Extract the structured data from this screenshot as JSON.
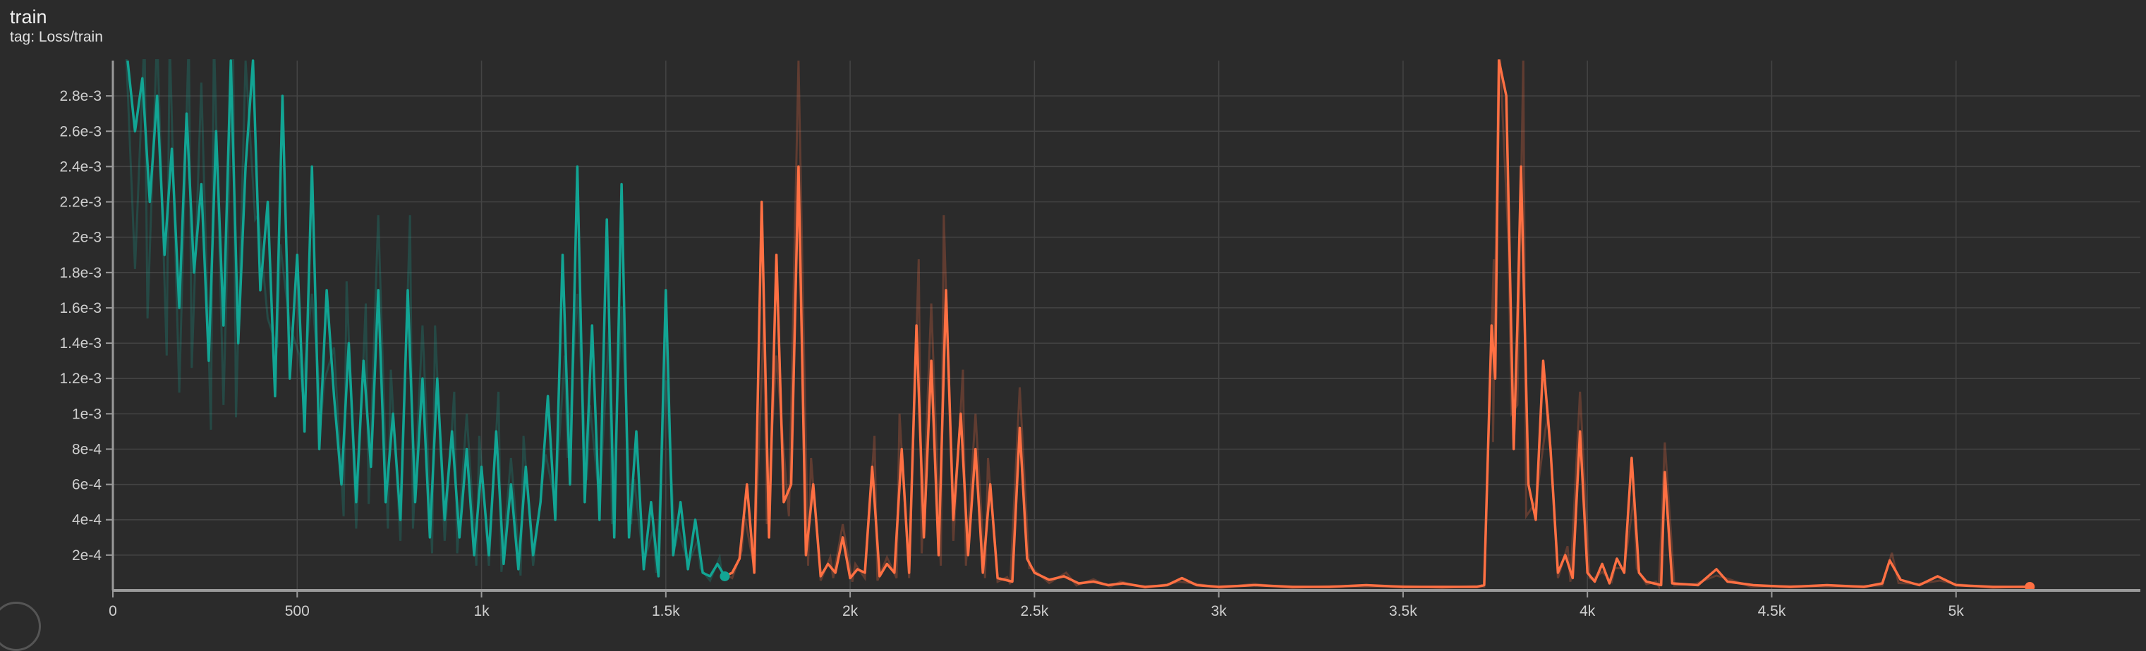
{
  "card": {
    "title": "train",
    "subtitle": "tag: Loss/train"
  },
  "chart_data": {
    "type": "line",
    "title": "train",
    "subtitle": "tag: Loss/train",
    "xlabel": "",
    "ylabel": "",
    "xlim": [
      0,
      5500
    ],
    "ylim": [
      0,
      0.003
    ],
    "grid": true,
    "x_ticks": [
      {
        "value": 0,
        "label": "0"
      },
      {
        "value": 500,
        "label": "500"
      },
      {
        "value": 1000,
        "label": "1k"
      },
      {
        "value": 1500,
        "label": "1.5k"
      },
      {
        "value": 2000,
        "label": "2k"
      },
      {
        "value": 2500,
        "label": "2.5k"
      },
      {
        "value": 3000,
        "label": "3k"
      },
      {
        "value": 3500,
        "label": "3.5k"
      },
      {
        "value": 4000,
        "label": "4k"
      },
      {
        "value": 4500,
        "label": "4.5k"
      },
      {
        "value": 5000,
        "label": "5k"
      }
    ],
    "y_ticks": [
      {
        "value": 0.0002,
        "label": "2e-4"
      },
      {
        "value": 0.0004,
        "label": "4e-4"
      },
      {
        "value": 0.0006,
        "label": "6e-4"
      },
      {
        "value": 0.0008,
        "label": "8e-4"
      },
      {
        "value": 0.001,
        "label": "1e-3"
      },
      {
        "value": 0.0012,
        "label": "1.2e-3"
      },
      {
        "value": 0.0014,
        "label": "1.4e-3"
      },
      {
        "value": 0.0016,
        "label": "1.6e-3"
      },
      {
        "value": 0.0018,
        "label": "1.8e-3"
      },
      {
        "value": 0.002,
        "label": "2e-3"
      },
      {
        "value": 0.0022,
        "label": "2.2e-3"
      },
      {
        "value": 0.0024,
        "label": "2.4e-3"
      },
      {
        "value": 0.0026,
        "label": "2.6e-3"
      },
      {
        "value": 0.0028,
        "label": "2.8e-3"
      }
    ],
    "series": [
      {
        "color": "#12a594",
        "smoothed": [
          [
            40,
            0.003
          ],
          [
            60,
            0.0026
          ],
          [
            80,
            0.0029
          ],
          [
            100,
            0.0022
          ],
          [
            120,
            0.0028
          ],
          [
            140,
            0.0019
          ],
          [
            160,
            0.0025
          ],
          [
            180,
            0.0016
          ],
          [
            200,
            0.0027
          ],
          [
            220,
            0.0018
          ],
          [
            240,
            0.0023
          ],
          [
            260,
            0.0013
          ],
          [
            280,
            0.0026
          ],
          [
            300,
            0.0015
          ],
          [
            320,
            0.003
          ],
          [
            340,
            0.0014
          ],
          [
            360,
            0.0024
          ],
          [
            380,
            0.003
          ],
          [
            400,
            0.0017
          ],
          [
            420,
            0.0022
          ],
          [
            440,
            0.0011
          ],
          [
            460,
            0.0028
          ],
          [
            480,
            0.0012
          ],
          [
            500,
            0.0019
          ],
          [
            520,
            0.0009
          ],
          [
            540,
            0.0024
          ],
          [
            560,
            0.0008
          ],
          [
            580,
            0.0017
          ],
          [
            600,
            0.0011
          ],
          [
            620,
            0.0006
          ],
          [
            640,
            0.0014
          ],
          [
            660,
            0.0005
          ],
          [
            680,
            0.0013
          ],
          [
            700,
            0.0007
          ],
          [
            720,
            0.0017
          ],
          [
            740,
            0.0005
          ],
          [
            760,
            0.001
          ],
          [
            780,
            0.0004
          ],
          [
            800,
            0.0017
          ],
          [
            820,
            0.0005
          ],
          [
            840,
            0.0012
          ],
          [
            860,
            0.0003
          ],
          [
            880,
            0.0012
          ],
          [
            900,
            0.0004
          ],
          [
            920,
            0.0009
          ],
          [
            940,
            0.0003
          ],
          [
            960,
            0.0008
          ],
          [
            980,
            0.0002
          ],
          [
            1000,
            0.0007
          ],
          [
            1020,
            0.0002
          ],
          [
            1040,
            0.0009
          ],
          [
            1060,
            0.00015
          ],
          [
            1080,
            0.0006
          ],
          [
            1100,
            0.00012
          ],
          [
            1120,
            0.0007
          ],
          [
            1140,
            0.0002
          ],
          [
            1160,
            0.0005
          ],
          [
            1180,
            0.0011
          ],
          [
            1200,
            0.0004
          ],
          [
            1220,
            0.0019
          ],
          [
            1240,
            0.0006
          ],
          [
            1260,
            0.0024
          ],
          [
            1280,
            0.0005
          ],
          [
            1300,
            0.0015
          ],
          [
            1320,
            0.0004
          ],
          [
            1340,
            0.0021
          ],
          [
            1360,
            0.0003
          ],
          [
            1380,
            0.0023
          ],
          [
            1400,
            0.0003
          ],
          [
            1420,
            0.0009
          ],
          [
            1440,
            0.00012
          ],
          [
            1460,
            0.0005
          ],
          [
            1480,
            8e-05
          ],
          [
            1500,
            0.0017
          ],
          [
            1520,
            0.0002
          ],
          [
            1540,
            0.0005
          ],
          [
            1560,
            0.00012
          ],
          [
            1580,
            0.0004
          ],
          [
            1600,
            0.0001
          ],
          [
            1620,
            8e-05
          ],
          [
            1640,
            0.00015
          ],
          [
            1660,
            8e-05
          ]
        ]
      },
      {
        "color": "#ff7043",
        "smoothed": [
          [
            1660,
            8e-05
          ],
          [
            1680,
            0.0001
          ],
          [
            1700,
            0.00018
          ],
          [
            1720,
            0.0006
          ],
          [
            1740,
            0.0001
          ],
          [
            1760,
            0.0022
          ],
          [
            1780,
            0.0003
          ],
          [
            1800,
            0.0019
          ],
          [
            1820,
            0.0005
          ],
          [
            1840,
            0.0006
          ],
          [
            1860,
            0.0024
          ],
          [
            1880,
            0.0002
          ],
          [
            1900,
            0.0006
          ],
          [
            1920,
            8e-05
          ],
          [
            1940,
            0.00015
          ],
          [
            1960,
            0.0001
          ],
          [
            1980,
            0.0003
          ],
          [
            2000,
            7e-05
          ],
          [
            2020,
            0.00012
          ],
          [
            2040,
            0.0001
          ],
          [
            2060,
            0.0007
          ],
          [
            2080,
            8e-05
          ],
          [
            2100,
            0.00015
          ],
          [
            2120,
            0.0001
          ],
          [
            2140,
            0.0008
          ],
          [
            2160,
            0.0001
          ],
          [
            2180,
            0.0015
          ],
          [
            2200,
            0.0003
          ],
          [
            2220,
            0.0013
          ],
          [
            2240,
            0.0002
          ],
          [
            2260,
            0.0017
          ],
          [
            2280,
            0.0004
          ],
          [
            2300,
            0.001
          ],
          [
            2320,
            0.0002
          ],
          [
            2340,
            0.0008
          ],
          [
            2360,
            0.0001
          ],
          [
            2380,
            0.0006
          ],
          [
            2400,
            7e-05
          ],
          [
            2420,
            6e-05
          ],
          [
            2440,
            5e-05
          ],
          [
            2460,
            0.00092
          ],
          [
            2480,
            0.00018
          ],
          [
            2500,
            0.0001
          ],
          [
            2540,
            6e-05
          ],
          [
            2580,
            8e-05
          ],
          [
            2620,
            4e-05
          ],
          [
            2660,
            5e-05
          ],
          [
            2700,
            3e-05
          ],
          [
            2740,
            4e-05
          ],
          [
            2800,
            2e-05
          ],
          [
            2860,
            3e-05
          ],
          [
            2900,
            7e-05
          ],
          [
            2940,
            3e-05
          ],
          [
            3000,
            2e-05
          ],
          [
            3100,
            3e-05
          ],
          [
            3200,
            2e-05
          ],
          [
            3300,
            2e-05
          ],
          [
            3400,
            3e-05
          ],
          [
            3500,
            2e-05
          ],
          [
            3600,
            2e-05
          ],
          [
            3700,
            2e-05
          ],
          [
            3720,
            3e-05
          ],
          [
            3740,
            0.0015
          ],
          [
            3750,
            0.0012
          ],
          [
            3760,
            0.003
          ],
          [
            3780,
            0.0028
          ],
          [
            3800,
            0.0008
          ],
          [
            3810,
            0.0015
          ],
          [
            3820,
            0.0024
          ],
          [
            3840,
            0.0006
          ],
          [
            3860,
            0.0004
          ],
          [
            3880,
            0.0013
          ],
          [
            3900,
            0.0008
          ],
          [
            3920,
            0.0001
          ],
          [
            3940,
            0.0002
          ],
          [
            3960,
            7e-05
          ],
          [
            3980,
            0.0009
          ],
          [
            4000,
            0.0001
          ],
          [
            4020,
            5e-05
          ],
          [
            4040,
            0.00015
          ],
          [
            4060,
            4e-05
          ],
          [
            4080,
            0.00018
          ],
          [
            4100,
            0.0001
          ],
          [
            4120,
            0.00075
          ],
          [
            4140,
            0.0001
          ],
          [
            4160,
            5e-05
          ],
          [
            4180,
            4e-05
          ],
          [
            4200,
            3e-05
          ],
          [
            4210,
            0.00067
          ],
          [
            4230,
            4e-05
          ],
          [
            4300,
            3e-05
          ],
          [
            4350,
            0.00012
          ],
          [
            4380,
            5e-05
          ],
          [
            4450,
            3e-05
          ],
          [
            4550,
            2e-05
          ],
          [
            4650,
            3e-05
          ],
          [
            4750,
            2e-05
          ],
          [
            4800,
            4e-05
          ],
          [
            4820,
            0.00017
          ],
          [
            4850,
            6e-05
          ],
          [
            4900,
            3e-05
          ],
          [
            4950,
            8e-05
          ],
          [
            5000,
            3e-05
          ],
          [
            5100,
            2e-05
          ],
          [
            5200,
            2e-05
          ]
        ]
      }
    ]
  }
}
